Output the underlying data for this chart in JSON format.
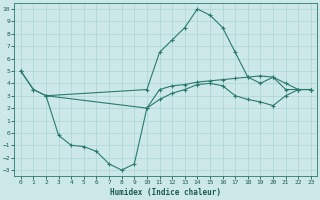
{
  "background_color": "#cde8e8",
  "grid_color": "#b0d8d8",
  "line_color": "#2a7a70",
  "xlabel": "Humidex (Indice chaleur)",
  "xlim": [
    -0.5,
    23.5
  ],
  "ylim": [
    -3.5,
    10.5
  ],
  "xticks": [
    0,
    1,
    2,
    3,
    4,
    5,
    6,
    7,
    8,
    9,
    10,
    11,
    12,
    13,
    14,
    15,
    16,
    17,
    18,
    19,
    20,
    21,
    22,
    23
  ],
  "yticks": [
    -3,
    -2,
    -1,
    0,
    1,
    2,
    3,
    4,
    5,
    6,
    7,
    8,
    9,
    10
  ],
  "curve1_x": [
    0,
    1,
    2,
    10,
    11,
    12,
    13,
    14,
    15,
    16,
    17,
    18,
    19,
    20,
    21,
    22,
    23
  ],
  "curve1_y": [
    5,
    3.5,
    3.0,
    3.5,
    6.5,
    7.5,
    8.5,
    10.0,
    9.5,
    8.5,
    6.5,
    4.5,
    4.0,
    4.5,
    3.5,
    3.5,
    3.5
  ],
  "curve2_x": [
    0,
    1,
    2,
    10,
    11,
    12,
    13,
    14,
    15,
    16,
    17,
    18,
    19,
    20,
    21,
    22,
    23
  ],
  "curve2_y": [
    5,
    3.5,
    3.0,
    2.0,
    3.5,
    3.8,
    3.9,
    4.1,
    4.2,
    4.3,
    4.4,
    4.5,
    4.6,
    4.5,
    4.0,
    3.5,
    3.5
  ],
  "curve3_x": [
    2,
    3,
    4,
    5,
    6,
    7,
    8,
    9,
    10,
    11,
    12,
    13,
    14,
    15,
    16,
    17,
    18,
    19,
    20,
    21,
    22,
    23
  ],
  "curve3_y": [
    3.0,
    -0.2,
    -1.0,
    -1.1,
    -1.5,
    -2.5,
    -3.0,
    -2.5,
    2.0,
    2.7,
    3.2,
    3.5,
    3.9,
    4.0,
    3.8,
    3.0,
    2.7,
    2.5,
    2.2,
    3.0,
    3.5,
    3.5
  ]
}
